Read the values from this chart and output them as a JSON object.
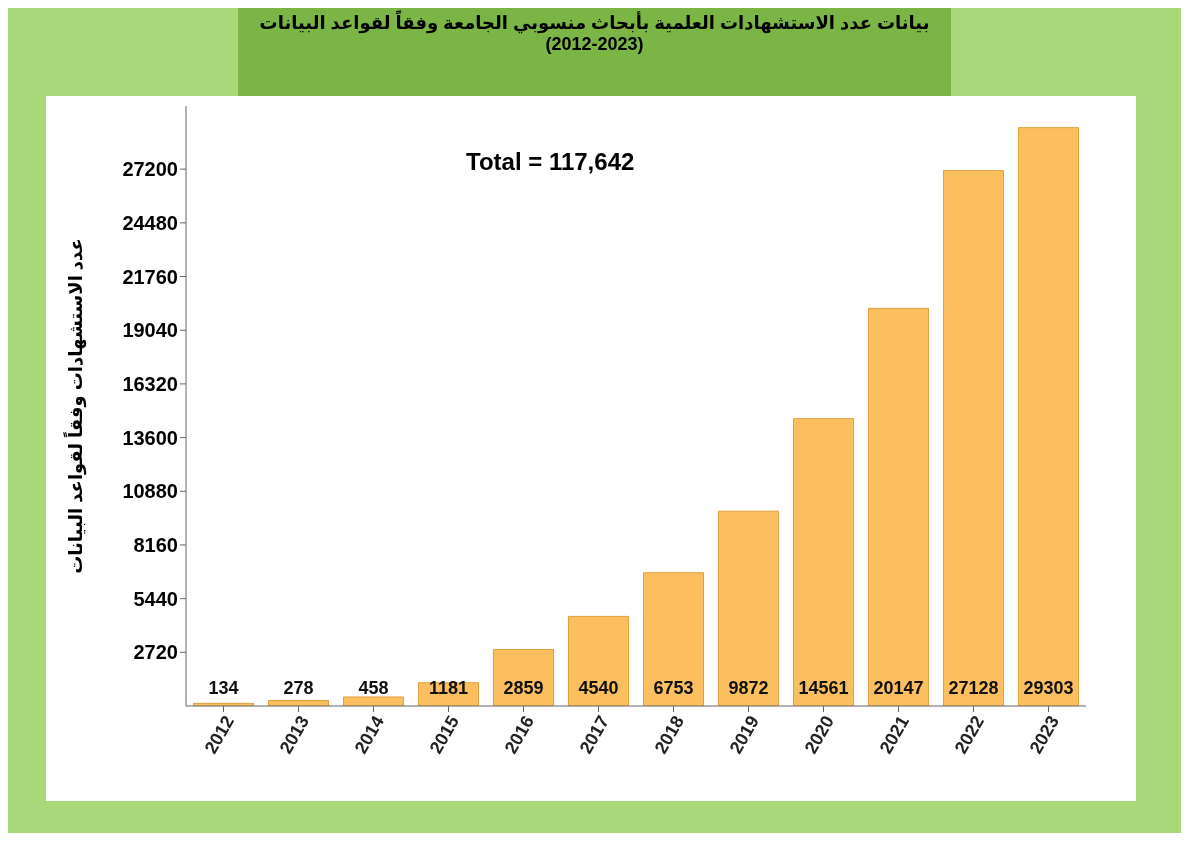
{
  "chart_data": {
    "type": "bar",
    "title": "بيانات عدد الاستشهادات العلمية بأبحاث منسوبي الجامعة وفقاً لقواعد البيانات",
    "subtitle": "(2012-2023)",
    "ylabel": "عدد الاستشهادات وفقاً لقواعد البيانات",
    "annotations": [
      "Total = 117,642"
    ],
    "categories": [
      "2012",
      "2013",
      "2014",
      "2015",
      "2016",
      "2017",
      "2018",
      "2019",
      "2020",
      "2021",
      "2022",
      "2023"
    ],
    "values": [
      134,
      278,
      458,
      1181,
      2859,
      4540,
      6753,
      9872,
      14561,
      20147,
      27128,
      29303
    ],
    "color": "#fbbf5f",
    "ylim": [
      0,
      30400
    ],
    "yticks": [
      2720,
      5440,
      8160,
      10880,
      13600,
      16320,
      19040,
      21760,
      24480,
      27200
    ],
    "data_labels": true,
    "grid": false
  }
}
